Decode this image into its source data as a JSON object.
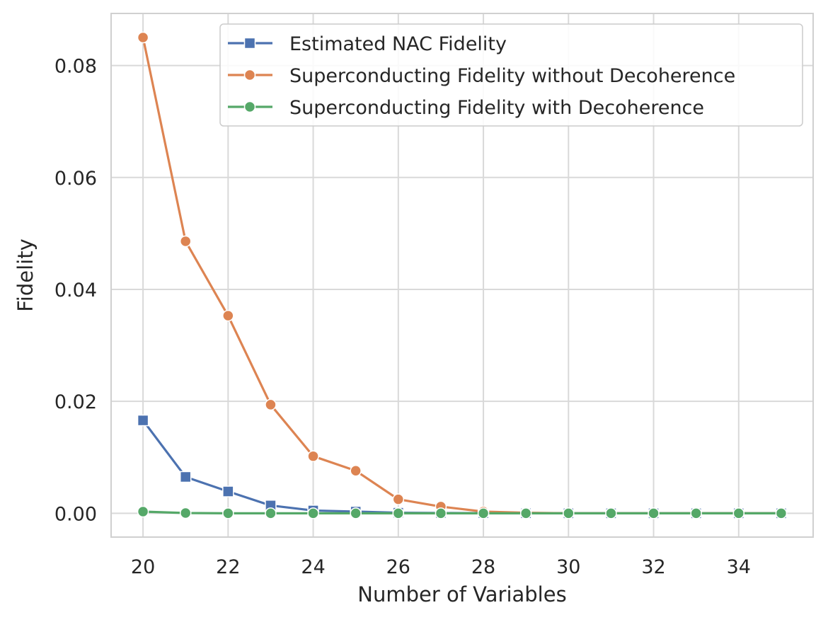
{
  "chart_data": {
    "type": "line",
    "xlabel": "Number of Variables",
    "ylabel": "Fidelity",
    "xlim": [
      19.25,
      35.75
    ],
    "ylim": [
      -0.00425,
      0.0893
    ],
    "xticks": [
      20,
      22,
      24,
      26,
      28,
      30,
      32,
      34
    ],
    "xtick_labels": [
      "20",
      "22",
      "24",
      "26",
      "28",
      "30",
      "32",
      "34"
    ],
    "yticks": [
      0.0,
      0.02,
      0.04,
      0.06,
      0.08
    ],
    "ytick_labels": [
      "0.00",
      "0.02",
      "0.04",
      "0.06",
      "0.08"
    ],
    "grid": true,
    "legend_position": "top-right",
    "x": [
      20,
      21,
      22,
      23,
      24,
      25,
      26,
      27,
      28,
      29,
      30,
      31,
      32,
      33,
      34,
      35
    ],
    "series": [
      {
        "name": "Estimated NAC Fidelity",
        "color": "#4c72b0",
        "marker": "square",
        "values": [
          0.0166,
          0.0065,
          0.0039,
          0.0014,
          0.0005,
          0.0003,
          0.0001,
          5e-05,
          2e-05,
          1e-05,
          0.0,
          0.0,
          0.0,
          0.0,
          0.0,
          0.0
        ]
      },
      {
        "name": "Superconducting Fidelity without Decoherence",
        "color": "#dd8452",
        "marker": "circle",
        "values": [
          0.085,
          0.0486,
          0.0353,
          0.0194,
          0.0102,
          0.0076,
          0.0025,
          0.0012,
          0.0003,
          0.0001,
          0.0,
          0.0,
          0.0,
          0.0,
          0.0,
          0.0
        ]
      },
      {
        "name": "Superconducting Fidelity with Decoherence",
        "color": "#55a868",
        "marker": "circle",
        "values": [
          0.0003,
          5e-05,
          0.0,
          0.0,
          0.0,
          0.0,
          0.0,
          0.0,
          0.0,
          0.0,
          0.0,
          0.0,
          0.0,
          0.0,
          0.0,
          0.0
        ]
      }
    ]
  }
}
